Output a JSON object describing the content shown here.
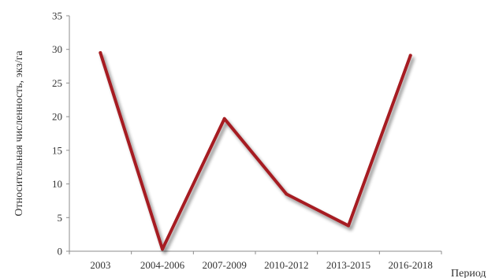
{
  "chart_data": {
    "type": "line",
    "title": "",
    "xlabel": "Период",
    "ylabel": "Относительная численность, экз/га",
    "categories": [
      "2003",
      "2004-2006",
      "2007-2009",
      "2010-2012",
      "2013-2015",
      "2016-2018"
    ],
    "series": [
      {
        "values": [
          29.5,
          0.3,
          19.7,
          8.5,
          3.8,
          29.1
        ],
        "color": "#a61e22"
      }
    ],
    "ylim": [
      0,
      35
    ],
    "yticks": [
      0,
      5,
      10,
      15,
      20,
      25,
      30,
      35
    ],
    "grid": false,
    "legend": "none"
  }
}
